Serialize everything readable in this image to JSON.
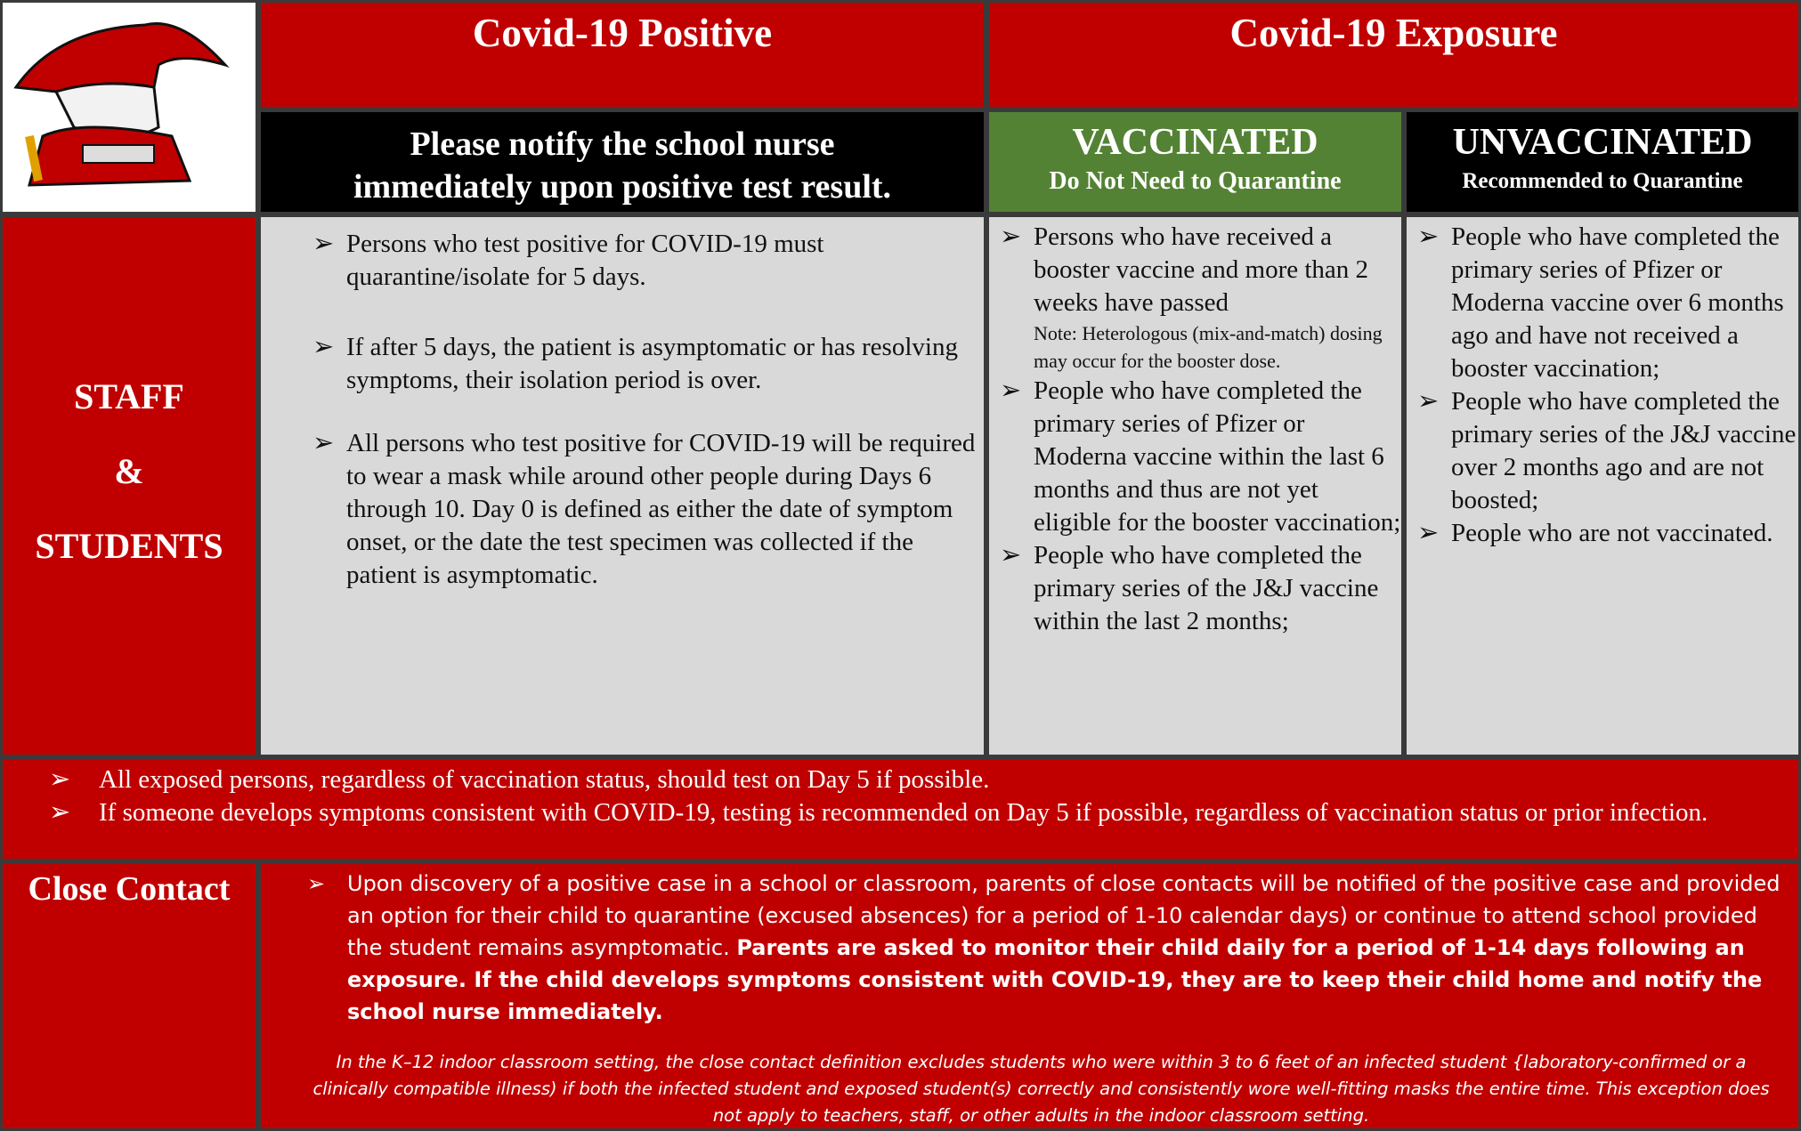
{
  "header": {
    "positive_title": "Covid-19 Positive",
    "exposure_title": "Covid-19 Exposure"
  },
  "positive": {
    "notice_lines": [
      "Please notify the school nurse",
      "immediately upon positive test result."
    ],
    "items": [
      "Persons who test positive for COVID-19 must quarantine/isolate for 5 days.",
      "If after 5 days, the patient is asymptomatic or has resolving symptoms, their isolation period is over.",
      "All persons who test positive for COVID-19 will be required to wear a mask while around other people during Days 6 through 10. Day 0 is defined as either the date of symptom onset, or the date the test specimen was collected if the patient is asymptomatic."
    ]
  },
  "vaccinated": {
    "title": "VACCINATED",
    "subtitle": "Do Not Need to Quarantine",
    "items": [
      "Persons who have received a booster vaccine and more than 2 weeks have passed",
      "People who have completed the primary series of Pfizer or Moderna vaccine within the last 6 months and thus are not yet eligible for the booster vaccination;",
      "People who have completed the primary series of the J&J vaccine within the last 2 months;"
    ],
    "note": "Note: Heterologous (mix-and-match) dosing may occur for the booster dose."
  },
  "unvaccinated": {
    "title": "UNVACCINATED",
    "subtitle": "Recommended to Quarantine",
    "items": [
      "People who have completed the primary series of Pfizer or Moderna vaccine over 6 months ago and have not received a booster vaccination;",
      "People who have completed the primary series of the J&J vaccine over 2 months ago and are not boosted;",
      "People who are not vaccinated."
    ]
  },
  "row_label": [
    "STAFF",
    "&",
    "STUDENTS"
  ],
  "exposed": {
    "item_1_serif": "All exposed persons, regardless of vaccination status, should test on Day 5 if possible.",
    "item_2": "If someone develops symptoms consistent with COVID-19, testing is recommended on Day 5 if possible, regardless of vaccination status or prior infection."
  },
  "close_contact": {
    "label": "Close Contact",
    "text": "Upon discovery of a positive case in a school or classroom, parents of close contacts will be notified of the positive case and provided an option for their child to quarantine (excused absences) for a period of 1-10 calendar days) or continue to attend school provided the student remains asymptomatic.",
    "bold_text": "Parents are asked to monitor their child daily for a period of 1-14 days following an exposure. If the child develops symptoms consistent with COVID-19, they are to keep their child home and notify the school nurse immediately.",
    "italic_note": "In the K–12 indoor classroom setting, the close contact definition excludes students who were within 3 to 6 feet of an infected student {laboratory-confirmed or a clinically compatible illness) if both the infected student and exposed student(s) correctly and consistently wore well-fitting masks the entire time. This exception does not apply to teachers, staff, or other adults in the indoor classroom setting."
  }
}
